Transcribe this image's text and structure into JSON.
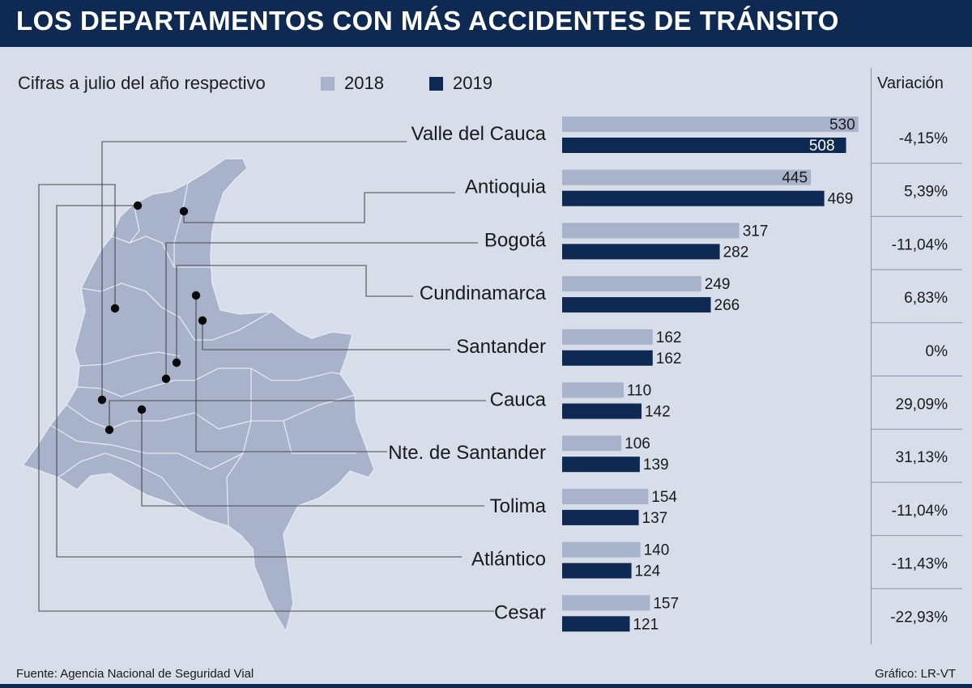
{
  "header": {
    "title": "LOS DEPARTAMENTOS CON MÁS ACCIDENTES DE TRÁNSITO",
    "subtitle": "Cifras a julio del año respectivo"
  },
  "legend": [
    {
      "label": "2018",
      "color": "#a9b2cb"
    },
    {
      "label": "2019",
      "color": "#0e2a52"
    }
  ],
  "variation_header": "Variación",
  "chart_data": {
    "type": "bar",
    "orientation": "horizontal",
    "categories": [
      "Valle del Cauca",
      "Antioquia",
      "Bogotá",
      "Cundinamarca",
      "Santander",
      "Cauca",
      "Nte. de Santander",
      "Tolima",
      "Atlántico",
      "Cesar"
    ],
    "series": [
      {
        "name": "2018",
        "color": "#a9b2cb",
        "values": [
          530,
          445,
          317,
          249,
          162,
          110,
          106,
          154,
          140,
          157
        ]
      },
      {
        "name": "2019",
        "color": "#0e2a52",
        "values": [
          508,
          469,
          282,
          266,
          162,
          142,
          139,
          137,
          124,
          121
        ]
      }
    ],
    "variation": [
      "-4,15%",
      "5,39%",
      "-11,04%",
      "6,83%",
      "0%",
      "29,09%",
      "31,13%",
      "-11,04%",
      "-11,43%",
      "-22,93%"
    ],
    "legend_position": "top",
    "grid": false
  },
  "footer": {
    "source": "Fuente: Agencia Nacional de Seguridad Vial",
    "credit": "Gráfico: LR-VT"
  },
  "map": {
    "icon": "colombia-map-icon",
    "fill": "#a9b2cb",
    "border": "#e4e8f0"
  }
}
